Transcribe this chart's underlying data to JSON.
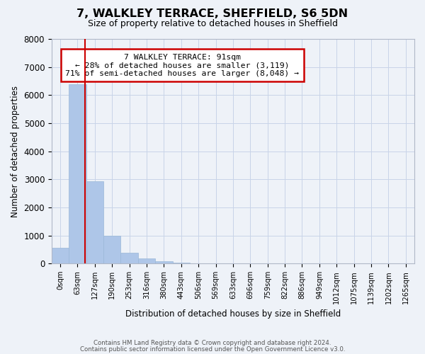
{
  "title": "7, WALKLEY TERRACE, SHEFFIELD, S6 5DN",
  "subtitle": "Size of property relative to detached houses in Sheffield",
  "xlabel": "Distribution of detached houses by size in Sheffield",
  "ylabel": "Number of detached properties",
  "bar_values": [
    560,
    6380,
    2930,
    980,
    380,
    185,
    90,
    30,
    0,
    0,
    0,
    0,
    0,
    0,
    0,
    0,
    0,
    0,
    0,
    0,
    0
  ],
  "bar_labels": [
    "0sqm",
    "63sqm",
    "127sqm",
    "190sqm",
    "253sqm",
    "316sqm",
    "380sqm",
    "443sqm",
    "506sqm",
    "569sqm",
    "633sqm",
    "696sqm",
    "759sqm",
    "822sqm",
    "886sqm",
    "949sqm",
    "1012sqm",
    "1075sqm",
    "1139sqm",
    "1202sqm",
    "1265sqm"
  ],
  "ylim": [
    0,
    8000
  ],
  "yticks": [
    0,
    1000,
    2000,
    3000,
    4000,
    5000,
    6000,
    7000,
    8000
  ],
  "bar_color": "#aec6e8",
  "bar_edge_color": "#9ab8d8",
  "vline_x": 1.44,
  "vline_color": "#cc0000",
  "annotation_title": "7 WALKLEY TERRACE: 91sqm",
  "annotation_line1": "← 28% of detached houses are smaller (3,119)",
  "annotation_line2": "71% of semi-detached houses are larger (8,048) →",
  "annotation_box_color": "#ffffff",
  "annotation_box_edge": "#cc0000",
  "grid_color": "#c8d4e8",
  "bg_color": "#eef2f8",
  "footer1": "Contains HM Land Registry data © Crown copyright and database right 2024.",
  "footer2": "Contains public sector information licensed under the Open Government Licence v3.0."
}
